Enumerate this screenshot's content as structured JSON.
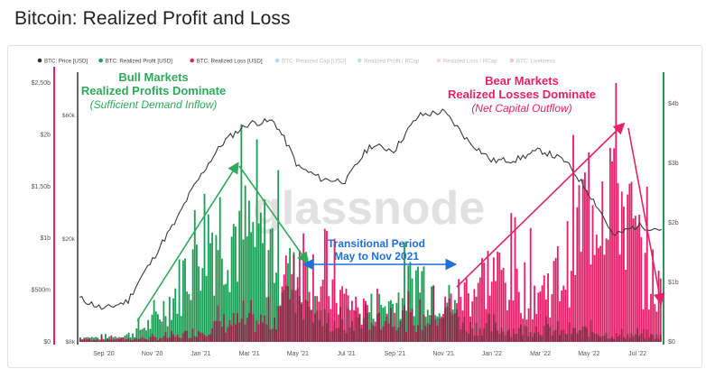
{
  "page": {
    "title": "Bitcoin: Realized Profit and Loss"
  },
  "colors": {
    "price": "#3a3a3a",
    "profit": "#1e9e55",
    "loss": "#e8206a",
    "overlap": "#8a2846",
    "bull_text": "#2eaa5a",
    "bear_text": "#e8206a",
    "transition_text": "#1e6fd9"
  },
  "legend": [
    {
      "label": "BTC: Price [USD]",
      "color": "#333333",
      "active": true
    },
    {
      "label": "BTC: Realized Profit [USD]",
      "color": "#1e9e55",
      "active": true
    },
    {
      "label": "BTC: Realized Loss [USD]",
      "color": "#e8206a",
      "active": true
    },
    {
      "label": "BTC: Realized Cap [USD]",
      "color": "#3b7dd8",
      "active": false
    },
    {
      "label": "Realized Profit / RCap",
      "color": "#3ac08a",
      "active": false
    },
    {
      "label": "Realized Loss / RCap",
      "color": "#f08aa8",
      "active": false
    },
    {
      "label": "BTC: Liveliness",
      "color": "#c060c0",
      "active": false
    }
  ],
  "annotations": {
    "bull": {
      "line1": "Bull Markets",
      "line2": "Realized Profits Dominate",
      "line3": "(Sufficient Demand Inflow)"
    },
    "bear": {
      "line1": "Bear Markets",
      "line2": "Realized Losses Dominate",
      "line3": "(Net Capital Outflow)"
    },
    "transition": {
      "line1": "Transitional Period",
      "line2": "May to Nov 2021"
    }
  },
  "watermark": "glassnode",
  "chart_data": {
    "type": "bar",
    "title": "Bitcoin: Realized Profit and Loss",
    "x_ticks": [
      "Sep '20",
      "Nov '20",
      "Jan '21",
      "Mar '21",
      "May '21",
      "Jul '21",
      "Sep '21",
      "Nov '21",
      "Jan '22",
      "Mar '22",
      "May '22",
      "Jul '22"
    ],
    "y_left_ticks": [
      "$0",
      "$500m",
      "$1b",
      "$1.50b",
      "$2b",
      "$2.50b"
    ],
    "y_left_range": [
      0,
      2500000000
    ],
    "y_price_ticks": [
      "$8k",
      "$20k",
      "$60k"
    ],
    "y_price_scale": "log",
    "y_price_range": [
      8000,
      80000
    ],
    "y_right_ticks": [
      "$0",
      "$1b",
      "$2b",
      "$3b",
      "$4b"
    ],
    "y_right_range": [
      0,
      4500000000
    ],
    "months": [
      "2020-08",
      "2020-09",
      "2020-10",
      "2020-11",
      "2020-12",
      "2021-01",
      "2021-02",
      "2021-03",
      "2021-04",
      "2021-05",
      "2021-06",
      "2021-07",
      "2021-08",
      "2021-09",
      "2021-10",
      "2021-11",
      "2021-12",
      "2022-01",
      "2022-02",
      "2022-03",
      "2022-04",
      "2022-05",
      "2022-06",
      "2022-07",
      "2022-08"
    ],
    "series": [
      {
        "name": "BTC: Price [USD]",
        "kind": "line",
        "values": [
          11800,
          10700,
          11500,
          16500,
          23500,
          35000,
          48000,
          56000,
          57000,
          38000,
          34000,
          33500,
          46000,
          44000,
          60000,
          62000,
          48000,
          40000,
          40500,
          44000,
          40000,
          30000,
          20500,
          22500,
          21800
        ]
      },
      {
        "name": "BTC: Realized Profit [USD]",
        "kind": "bar",
        "values": [
          60000000,
          50000000,
          90000000,
          250000000,
          650000000,
          1400000000,
          1500000000,
          1350000000,
          1200000000,
          700000000,
          300000000,
          200000000,
          420000000,
          500000000,
          850000000,
          600000000,
          200000000,
          180000000,
          150000000,
          180000000,
          120000000,
          150000000,
          80000000,
          90000000,
          70000000
        ]
      },
      {
        "name": "BTC: Realized Loss [USD]",
        "kind": "bar",
        "values": [
          40000000,
          40000000,
          40000000,
          50000000,
          70000000,
          150000000,
          250000000,
          250000000,
          280000000,
          1200000000,
          700000000,
          550000000,
          300000000,
          380000000,
          250000000,
          400000000,
          650000000,
          900000000,
          750000000,
          650000000,
          900000000,
          1800000000,
          2300000000,
          1200000000,
          600000000
        ]
      }
    ]
  }
}
